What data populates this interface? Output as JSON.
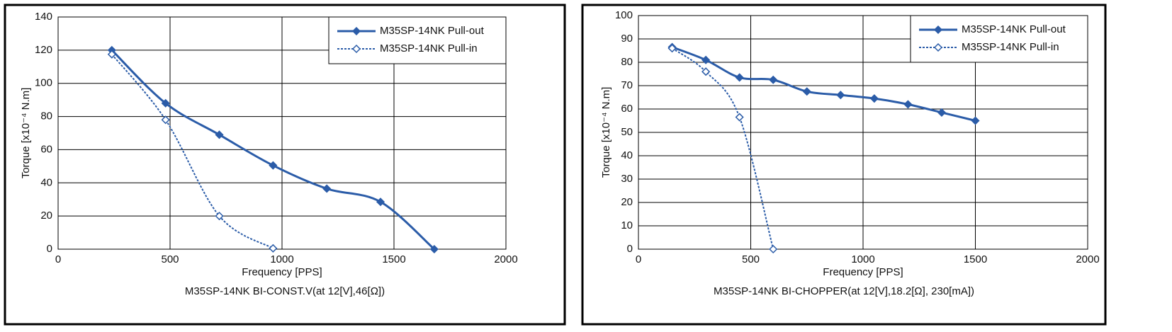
{
  "chart_data": [
    {
      "type": "line",
      "title": "M35SP-14NK BI-CONST.V(at 12[V],46[Ω])",
      "x_label": "Frequency [PPS]",
      "y_label": "Torque [x10⁻⁴ N.m]",
      "xlim": [
        0,
        2000
      ],
      "xticks": [
        0,
        500,
        1000,
        1500,
        2000
      ],
      "ylim": [
        0,
        140
      ],
      "yticks": [
        0,
        20,
        40,
        60,
        80,
        100,
        120,
        140
      ],
      "grid": true,
      "legend": "upper right",
      "series": [
        {
          "name": "M35SP-14NK Pull-out",
          "color": "#2b5ca8",
          "dashed": false,
          "filled": true,
          "x": [
            240,
            480,
            720,
            960,
            1200,
            1440,
            1680
          ],
          "values": [
            120,
            88,
            69,
            50.5,
            36.5,
            28.5,
            0
          ]
        },
        {
          "name": "M35SP-14NK Pull-in",
          "color": "#2b5ca8",
          "dashed": true,
          "filled": false,
          "x": [
            240,
            480,
            720,
            960
          ],
          "values": [
            117.5,
            78,
            20,
            0.5
          ]
        }
      ]
    },
    {
      "type": "line",
      "title": "M35SP-14NK BI-CHOPPER(at 12[V],18.2[Ω], 230[mA])",
      "x_label": "Frequency [PPS]",
      "y_label": "Torque [x10⁻⁴ N.m]",
      "xlim": [
        0,
        2000
      ],
      "xticks": [
        0,
        500,
        1000,
        1500,
        2000
      ],
      "ylim": [
        0,
        100
      ],
      "yticks": [
        0,
        10,
        20,
        30,
        40,
        50,
        60,
        70,
        80,
        90,
        100
      ],
      "grid": true,
      "legend": "upper right",
      "series": [
        {
          "name": "M35SP-14NK Pull-out",
          "color": "#2b5ca8",
          "dashed": false,
          "filled": true,
          "x": [
            150,
            300,
            450,
            600,
            750,
            900,
            1050,
            1200,
            1350,
            1500
          ],
          "values": [
            86.5,
            81,
            73.5,
            72.5,
            67.5,
            66,
            64.5,
            62,
            58.5,
            55
          ]
        },
        {
          "name": "M35SP-14NK Pull-in",
          "color": "#2b5ca8",
          "dashed": true,
          "filled": false,
          "x": [
            150,
            300,
            450,
            600
          ],
          "values": [
            86,
            76,
            56.5,
            0
          ]
        }
      ]
    }
  ]
}
